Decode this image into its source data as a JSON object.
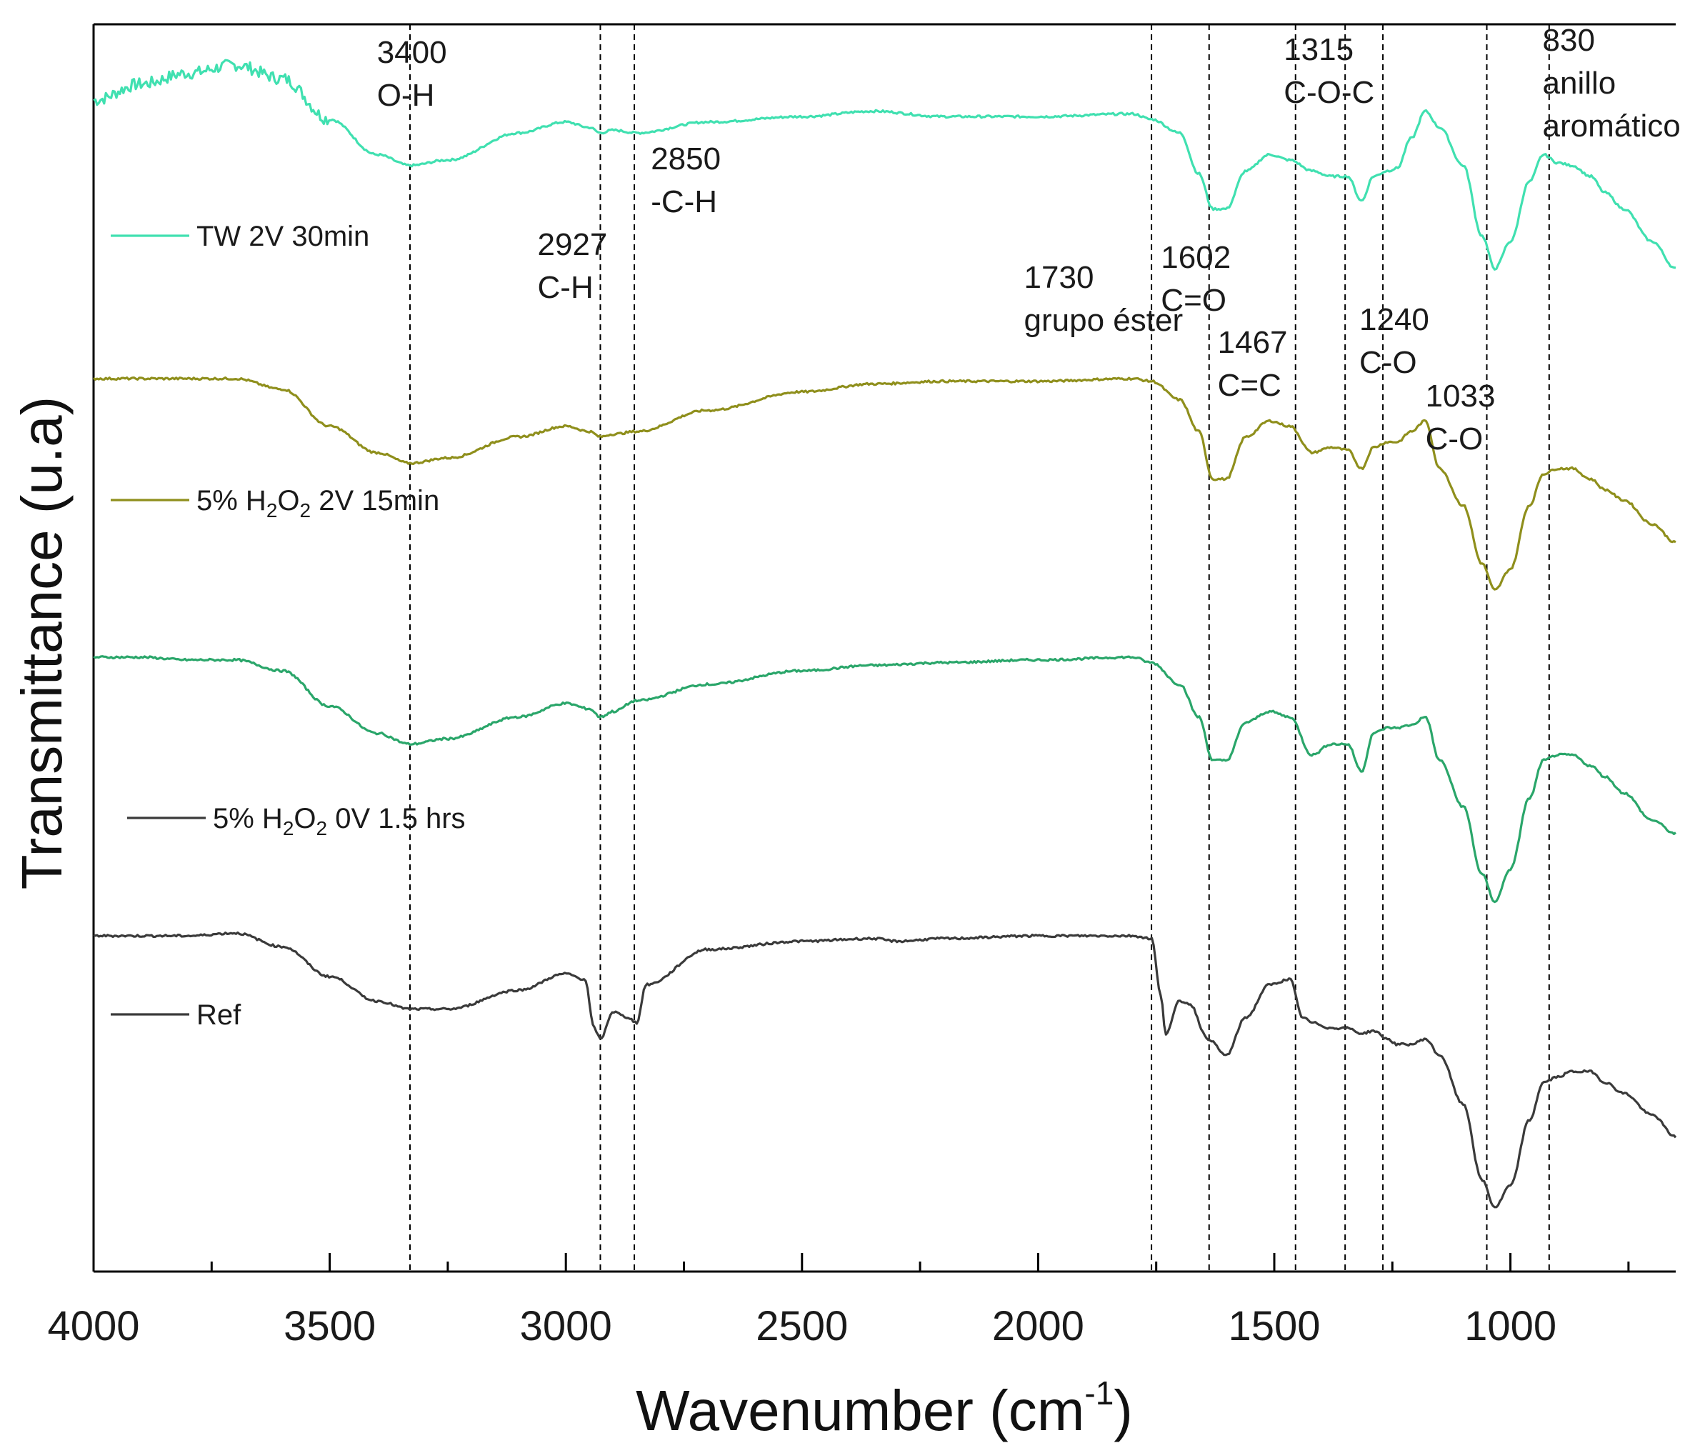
{
  "chart_data": {
    "type": "line",
    "title": "",
    "xlabel": "Wavenumber",
    "xlabel_unit": "(cm",
    "xlabel_unit_exp": "-1",
    "xlabel_unit_close": ")",
    "ylabel": "Transmittance (u.a)",
    "xlim": [
      4000,
      650
    ],
    "x_reversed": true,
    "y_ticks_shown": false,
    "grid": false,
    "x_ticks": [
      "4000",
      "3500",
      "3000",
      "2500",
      "2000",
      "1500",
      "1000"
    ],
    "legend_placement": "left, beside each curve",
    "series": [
      {
        "name": "TW 2V 30min",
        "color": "#40e0b0",
        "offset": 3,
        "points": [
          [
            4000,
            0.92
          ],
          [
            3900,
            0.98
          ],
          [
            3800,
            1.02
          ],
          [
            3700,
            1.05
          ],
          [
            3600,
            1.0
          ],
          [
            3500,
            0.85
          ],
          [
            3400,
            0.72
          ],
          [
            3330,
            0.68
          ],
          [
            3250,
            0.7
          ],
          [
            3100,
            0.8
          ],
          [
            3000,
            0.84
          ],
          [
            2950,
            0.82
          ],
          [
            2927,
            0.8
          ],
          [
            2900,
            0.81
          ],
          [
            2850,
            0.8
          ],
          [
            2700,
            0.84
          ],
          [
            2500,
            0.86
          ],
          [
            2350,
            0.88
          ],
          [
            2200,
            0.86
          ],
          [
            2000,
            0.86
          ],
          [
            1800,
            0.87
          ],
          [
            1760,
            0.85
          ],
          [
            1700,
            0.8
          ],
          [
            1660,
            0.65
          ],
          [
            1630,
            0.52
          ],
          [
            1602,
            0.52
          ],
          [
            1560,
            0.66
          ],
          [
            1510,
            0.72
          ],
          [
            1467,
            0.7
          ],
          [
            1420,
            0.66
          ],
          [
            1380,
            0.64
          ],
          [
            1345,
            0.64
          ],
          [
            1315,
            0.55
          ],
          [
            1290,
            0.64
          ],
          [
            1260,
            0.66
          ],
          [
            1240,
            0.67
          ],
          [
            1210,
            0.78
          ],
          [
            1180,
            0.88
          ],
          [
            1150,
            0.82
          ],
          [
            1100,
            0.68
          ],
          [
            1060,
            0.42
          ],
          [
            1033,
            0.3
          ],
          [
            1000,
            0.4
          ],
          [
            960,
            0.62
          ],
          [
            930,
            0.72
          ],
          [
            900,
            0.69
          ],
          [
            870,
            0.68
          ],
          [
            830,
            0.64
          ],
          [
            800,
            0.58
          ],
          [
            760,
            0.52
          ],
          [
            700,
            0.4
          ],
          [
            650,
            0.3
          ]
        ]
      },
      {
        "name": "5% H2O2 2V 15min",
        "sub1": "2",
        "sub2": "2",
        "color": "#8f8f1c",
        "offset": 2,
        "points": [
          [
            4000,
            1.0
          ],
          [
            3900,
            1.0
          ],
          [
            3800,
            1.0
          ],
          [
            3700,
            1.0
          ],
          [
            3600,
            0.96
          ],
          [
            3500,
            0.82
          ],
          [
            3400,
            0.72
          ],
          [
            3330,
            0.68
          ],
          [
            3250,
            0.7
          ],
          [
            3100,
            0.78
          ],
          [
            3000,
            0.82
          ],
          [
            2950,
            0.8
          ],
          [
            2927,
            0.78
          ],
          [
            2900,
            0.79
          ],
          [
            2850,
            0.8
          ],
          [
            2700,
            0.88
          ],
          [
            2500,
            0.95
          ],
          [
            2350,
            0.98
          ],
          [
            2200,
            0.99
          ],
          [
            2000,
            0.99
          ],
          [
            1800,
            1.0
          ],
          [
            1760,
            0.99
          ],
          [
            1700,
            0.92
          ],
          [
            1660,
            0.8
          ],
          [
            1630,
            0.62
          ],
          [
            1602,
            0.62
          ],
          [
            1560,
            0.78
          ],
          [
            1510,
            0.84
          ],
          [
            1467,
            0.82
          ],
          [
            1420,
            0.72
          ],
          [
            1380,
            0.74
          ],
          [
            1345,
            0.73
          ],
          [
            1315,
            0.66
          ],
          [
            1290,
            0.74
          ],
          [
            1260,
            0.76
          ],
          [
            1240,
            0.76
          ],
          [
            1210,
            0.8
          ],
          [
            1180,
            0.84
          ],
          [
            1150,
            0.66
          ],
          [
            1100,
            0.52
          ],
          [
            1060,
            0.3
          ],
          [
            1033,
            0.2
          ],
          [
            1000,
            0.28
          ],
          [
            960,
            0.52
          ],
          [
            930,
            0.64
          ],
          [
            900,
            0.66
          ],
          [
            870,
            0.66
          ],
          [
            830,
            0.62
          ],
          [
            800,
            0.58
          ],
          [
            760,
            0.54
          ],
          [
            700,
            0.45
          ],
          [
            650,
            0.38
          ]
        ]
      },
      {
        "name": "5% H2O2 0V 1.5 hrs",
        "sub1": "2",
        "sub2": "2",
        "color": "#2aa66a",
        "legend_color": "#3a3a3a",
        "offset": 1,
        "points": [
          [
            4000,
            1.0
          ],
          [
            3900,
            1.0
          ],
          [
            3800,
            0.99
          ],
          [
            3700,
            0.99
          ],
          [
            3600,
            0.95
          ],
          [
            3500,
            0.82
          ],
          [
            3400,
            0.72
          ],
          [
            3330,
            0.68
          ],
          [
            3250,
            0.7
          ],
          [
            3100,
            0.78
          ],
          [
            3000,
            0.83
          ],
          [
            2950,
            0.81
          ],
          [
            2927,
            0.78
          ],
          [
            2900,
            0.8
          ],
          [
            2850,
            0.84
          ],
          [
            2700,
            0.9
          ],
          [
            2500,
            0.95
          ],
          [
            2350,
            0.97
          ],
          [
            2200,
            0.98
          ],
          [
            2000,
            0.99
          ],
          [
            1800,
            1.0
          ],
          [
            1760,
            0.98
          ],
          [
            1700,
            0.9
          ],
          [
            1660,
            0.78
          ],
          [
            1630,
            0.62
          ],
          [
            1602,
            0.62
          ],
          [
            1560,
            0.76
          ],
          [
            1510,
            0.8
          ],
          [
            1467,
            0.78
          ],
          [
            1420,
            0.64
          ],
          [
            1380,
            0.68
          ],
          [
            1345,
            0.68
          ],
          [
            1315,
            0.58
          ],
          [
            1290,
            0.72
          ],
          [
            1260,
            0.74
          ],
          [
            1240,
            0.74
          ],
          [
            1210,
            0.75
          ],
          [
            1180,
            0.78
          ],
          [
            1150,
            0.62
          ],
          [
            1100,
            0.45
          ],
          [
            1060,
            0.2
          ],
          [
            1033,
            0.1
          ],
          [
            1000,
            0.22
          ],
          [
            960,
            0.48
          ],
          [
            930,
            0.62
          ],
          [
            900,
            0.64
          ],
          [
            870,
            0.64
          ],
          [
            830,
            0.6
          ],
          [
            800,
            0.56
          ],
          [
            760,
            0.5
          ],
          [
            700,
            0.4
          ],
          [
            650,
            0.35
          ]
        ]
      },
      {
        "name": "Ref",
        "color": "#3a3a3a",
        "offset": 0,
        "points": [
          [
            4000,
            1.0
          ],
          [
            3900,
            1.0
          ],
          [
            3800,
            1.0
          ],
          [
            3700,
            1.01
          ],
          [
            3600,
            0.96
          ],
          [
            3500,
            0.85
          ],
          [
            3400,
            0.76
          ],
          [
            3330,
            0.73
          ],
          [
            3250,
            0.73
          ],
          [
            3100,
            0.8
          ],
          [
            3000,
            0.86
          ],
          [
            2960,
            0.84
          ],
          [
            2940,
            0.66
          ],
          [
            2927,
            0.62
          ],
          [
            2900,
            0.72
          ],
          [
            2870,
            0.7
          ],
          [
            2850,
            0.68
          ],
          [
            2830,
            0.82
          ],
          [
            2700,
            0.95
          ],
          [
            2500,
            0.98
          ],
          [
            2350,
            0.99
          ],
          [
            2300,
            0.98
          ],
          [
            2200,
            0.99
          ],
          [
            2000,
            1.0
          ],
          [
            1800,
            1.0
          ],
          [
            1760,
            0.99
          ],
          [
            1740,
            0.78
          ],
          [
            1730,
            0.64
          ],
          [
            1700,
            0.76
          ],
          [
            1680,
            0.75
          ],
          [
            1640,
            0.62
          ],
          [
            1602,
            0.56
          ],
          [
            1560,
            0.7
          ],
          [
            1510,
            0.82
          ],
          [
            1467,
            0.84
          ],
          [
            1440,
            0.7
          ],
          [
            1420,
            0.68
          ],
          [
            1380,
            0.66
          ],
          [
            1345,
            0.66
          ],
          [
            1315,
            0.64
          ],
          [
            1290,
            0.65
          ],
          [
            1260,
            0.62
          ],
          [
            1240,
            0.6
          ],
          [
            1210,
            0.6
          ],
          [
            1180,
            0.62
          ],
          [
            1150,
            0.56
          ],
          [
            1100,
            0.38
          ],
          [
            1060,
            0.1
          ],
          [
            1033,
            0.0
          ],
          [
            1000,
            0.08
          ],
          [
            960,
            0.32
          ],
          [
            930,
            0.46
          ],
          [
            900,
            0.48
          ],
          [
            870,
            0.5
          ],
          [
            830,
            0.5
          ],
          [
            800,
            0.46
          ],
          [
            760,
            0.42
          ],
          [
            700,
            0.34
          ],
          [
            650,
            0.26
          ]
        ]
      }
    ],
    "reference_lines": [
      3330,
      2927,
      2855,
      1760,
      1638,
      1455,
      1350,
      1270,
      1050,
      918
    ],
    "annotations": [
      {
        "line1": "3400",
        "line2": "O-H",
        "at_x": 3400
      },
      {
        "line1": "2927",
        "line2": "C-H",
        "at_x": 3060
      },
      {
        "line1": "2850",
        "line2": "-C-H",
        "at_x": 2820
      },
      {
        "line1": "1730",
        "line2": "grupo éster",
        "at_x": 2030
      },
      {
        "line1": "1602",
        "line2": "C=O",
        "at_x": 1740
      },
      {
        "line1": "1467",
        "line2": "C=C",
        "at_x": 1620
      },
      {
        "line1": "1315",
        "line2": "C-O-C",
        "at_x": 1480
      },
      {
        "line1": "1240",
        "line2": "C-O",
        "at_x": 1320
      },
      {
        "line1": "1033",
        "line2": "C-O",
        "at_x": 1180
      },
      {
        "line1": "830",
        "line2": "anillo",
        "line3": "aromático",
        "at_x": 932
      }
    ]
  }
}
